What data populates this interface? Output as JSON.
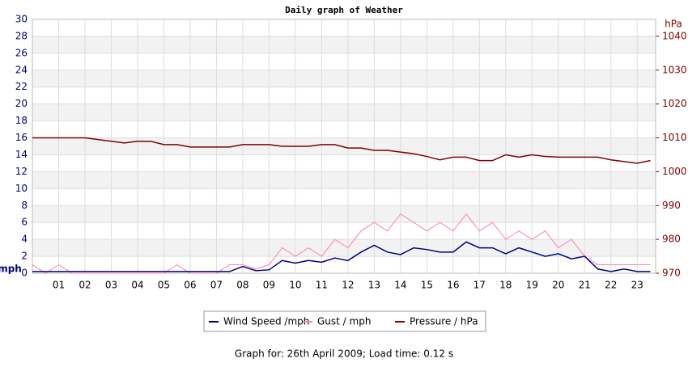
{
  "chart_data": {
    "type": "line",
    "title": "Daily graph of Weather",
    "ylabel": "mph",
    "y2label": "hPa",
    "footer": "Graph for: 26th April 2009; Load time: 0.12 s",
    "x": [
      0,
      0.5,
      1,
      1.5,
      2,
      2.5,
      3,
      3.5,
      4,
      4.5,
      5,
      5.5,
      6,
      6.5,
      7,
      7.5,
      8,
      8.5,
      9,
      9.5,
      10,
      10.5,
      11,
      11.5,
      12,
      12.5,
      13,
      13.5,
      14,
      14.5,
      15,
      15.5,
      16,
      16.5,
      17,
      17.5,
      18,
      18.5,
      19,
      19.5,
      20,
      20.5,
      21,
      21.5,
      22,
      22.5,
      23,
      23.5
    ],
    "xlim": [
      0,
      23.7
    ],
    "xticks": [
      {
        "value": 1,
        "label": "01"
      },
      {
        "value": 2,
        "label": "02"
      },
      {
        "value": 3,
        "label": "03"
      },
      {
        "value": 4,
        "label": "04"
      },
      {
        "value": 5,
        "label": "05"
      },
      {
        "value": 6,
        "label": "06"
      },
      {
        "value": 7,
        "label": "07"
      },
      {
        "value": 8,
        "label": "08"
      },
      {
        "value": 9,
        "label": "09"
      },
      10,
      11,
      12,
      13,
      14,
      15,
      16,
      17,
      18,
      19,
      20,
      21,
      22,
      23
    ],
    "ylim": [
      0,
      30
    ],
    "yticks": [
      0,
      2,
      4,
      6,
      8,
      10,
      12,
      14,
      16,
      18,
      20,
      22,
      24,
      26,
      28,
      30
    ],
    "y2lim": [
      970,
      1045
    ],
    "y2ticks": [
      970,
      980,
      990,
      1000,
      1010,
      1020,
      1030,
      1040
    ],
    "grid": true,
    "series": [
      {
        "name": "Wind Speed /mph",
        "color": "#00007f",
        "values": [
          0.2,
          0.2,
          0.2,
          0.2,
          0.2,
          0.2,
          0.2,
          0.2,
          0.2,
          0.2,
          0.2,
          0.2,
          0.2,
          0.2,
          0.2,
          0.2,
          0.8,
          0.3,
          0.4,
          1.5,
          1.2,
          1.5,
          1.3,
          1.8,
          1.5,
          2.5,
          3.3,
          2.5,
          2.2,
          3,
          2.8,
          2.5,
          2.5,
          3.7,
          3,
          3,
          2.3,
          3,
          2.5,
          2,
          2.3,
          1.7,
          2,
          0.5,
          0.2,
          0.5,
          0.2,
          0.2
        ]
      },
      {
        "name": "Gust / mph",
        "color": "#ff80a8",
        "values": [
          1,
          0,
          1,
          0,
          0,
          0,
          0,
          0,
          0,
          0,
          0,
          1,
          0,
          0,
          0,
          1,
          1,
          0.5,
          1,
          3,
          2,
          3,
          2,
          4,
          3,
          5,
          6,
          5,
          7,
          6,
          5,
          6,
          5,
          7,
          5,
          6,
          4,
          5,
          4,
          5,
          3,
          4,
          2,
          1,
          1,
          1,
          1,
          1
        ]
      },
      {
        "name": "Pressure / hPa",
        "color": "#800000",
        "axis": "y2",
        "values": [
          1010,
          1010,
          1010,
          1010,
          1010,
          1009.5,
          1009,
          1008.5,
          1009,
          1009,
          1008,
          1008,
          1007.3,
          1007.3,
          1007.3,
          1007.3,
          1008,
          1008,
          1008,
          1007.5,
          1007.5,
          1007.5,
          1008,
          1008,
          1007,
          1007,
          1006.3,
          1006.3,
          1005.8,
          1005.3,
          1004.5,
          1003.5,
          1004.3,
          1004.3,
          1003.3,
          1003.3,
          1005,
          1004.3,
          1005,
          1004.5,
          1004.3,
          1004.3,
          1004.3,
          1004.3,
          1003.5,
          1003,
          1002.5,
          1003.3
        ]
      }
    ]
  }
}
